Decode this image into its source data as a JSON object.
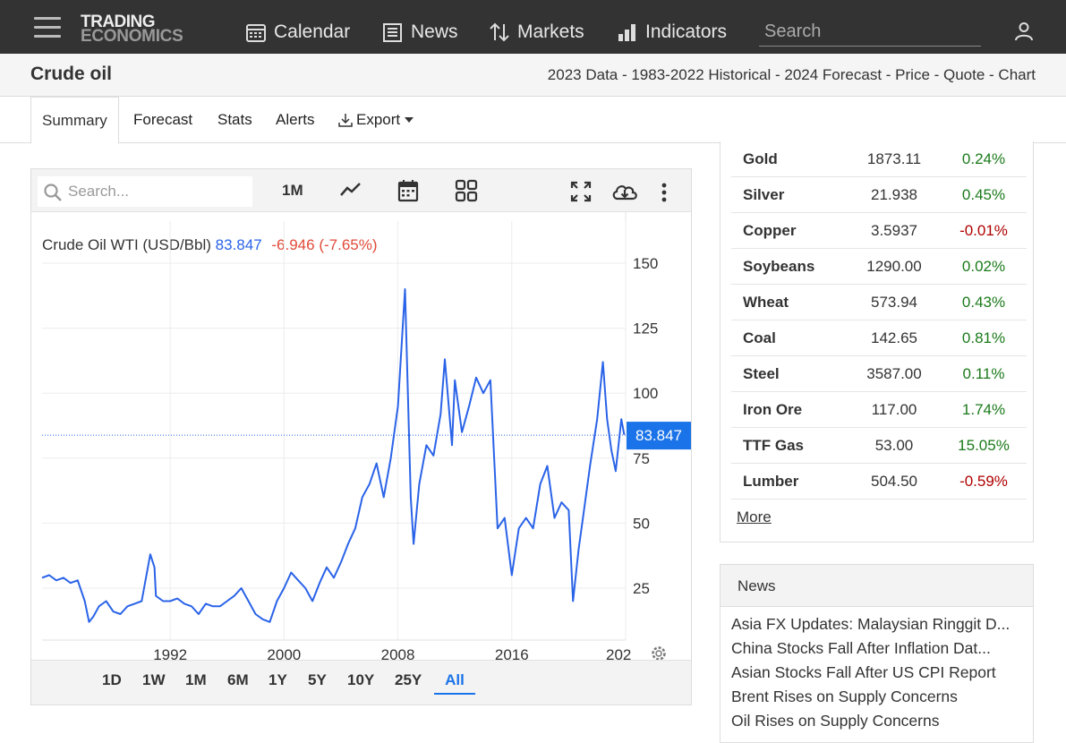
{
  "header": {
    "logo_line1": "TRADING",
    "logo_line2": "ECONOMICS",
    "nav": [
      {
        "label": "Calendar",
        "icon": "calendar-icon"
      },
      {
        "label": "News",
        "icon": "newspaper-icon"
      },
      {
        "label": "Markets",
        "icon": "sort-arrows-icon"
      },
      {
        "label": "Indicators",
        "icon": "bar-chart-icon"
      }
    ],
    "search_placeholder": "Search"
  },
  "subheader": {
    "title": "Crude oil",
    "links": "2023 Data - 1983-2022 Historical - 2024 Forecast - Price - Quote - Chart"
  },
  "tabs": [
    "Summary",
    "Forecast",
    "Stats",
    "Alerts",
    "Export"
  ],
  "chart_toolbar": {
    "search_placeholder": "Search...",
    "interval": "1M"
  },
  "chart_data": {
    "type": "line",
    "title": "Crude Oil WTI (USD/Bbl)",
    "last_value": "83.847",
    "change": "-6.946 (-7.65%)",
    "price_tag": "83.847",
    "x_ticks": [
      "1992",
      "2000",
      "2008",
      "2016",
      "202"
    ],
    "y_ticks": [
      "150",
      "125",
      "100",
      "75",
      "50",
      "25"
    ],
    "xlim": [
      1983,
      2024
    ],
    "ylim": [
      0,
      175
    ],
    "colors": {
      "line": "#2a63e8",
      "change": "#e04a3a",
      "tag": "#1a73e8"
    },
    "series": [
      {
        "points": [
          [
            1983,
            29
          ],
          [
            1983.5,
            30
          ],
          [
            1984,
            28
          ],
          [
            1984.5,
            29
          ],
          [
            1985,
            27
          ],
          [
            1985.5,
            28
          ],
          [
            1986,
            20
          ],
          [
            1986.3,
            12
          ],
          [
            1986.6,
            14
          ],
          [
            1987,
            18
          ],
          [
            1987.5,
            20
          ],
          [
            1988,
            16
          ],
          [
            1988.5,
            15
          ],
          [
            1989,
            18
          ],
          [
            1989.5,
            19
          ],
          [
            1990,
            20
          ],
          [
            1990.6,
            38
          ],
          [
            1990.9,
            33
          ],
          [
            1991,
            22
          ],
          [
            1991.5,
            20
          ],
          [
            1992,
            20
          ],
          [
            1992.5,
            21
          ],
          [
            1993,
            19
          ],
          [
            1993.5,
            18
          ],
          [
            1994,
            15
          ],
          [
            1994.5,
            19
          ],
          [
            1995,
            18
          ],
          [
            1995.5,
            18
          ],
          [
            1996,
            20
          ],
          [
            1996.5,
            22
          ],
          [
            1997,
            25
          ],
          [
            1997.5,
            20
          ],
          [
            1998,
            15
          ],
          [
            1998.5,
            13
          ],
          [
            1999,
            12
          ],
          [
            1999.5,
            20
          ],
          [
            2000,
            25
          ],
          [
            2000.5,
            31
          ],
          [
            2001,
            28
          ],
          [
            2001.5,
            25
          ],
          [
            2002,
            20
          ],
          [
            2002.5,
            27
          ],
          [
            2003,
            33
          ],
          [
            2003.5,
            29
          ],
          [
            2004,
            35
          ],
          [
            2004.5,
            42
          ],
          [
            2005,
            48
          ],
          [
            2005.5,
            60
          ],
          [
            2006,
            65
          ],
          [
            2006.5,
            73
          ],
          [
            2007,
            60
          ],
          [
            2007.5,
            75
          ],
          [
            2008,
            95
          ],
          [
            2008.5,
            140
          ],
          [
            2008.9,
            60
          ],
          [
            2009.1,
            42
          ],
          [
            2009.5,
            65
          ],
          [
            2010,
            80
          ],
          [
            2010.5,
            76
          ],
          [
            2011,
            92
          ],
          [
            2011.3,
            113
          ],
          [
            2011.8,
            80
          ],
          [
            2012,
            105
          ],
          [
            2012.5,
            85
          ],
          [
            2013,
            95
          ],
          [
            2013.5,
            106
          ],
          [
            2014,
            100
          ],
          [
            2014.5,
            105
          ],
          [
            2015,
            48
          ],
          [
            2015.5,
            52
          ],
          [
            2016,
            30
          ],
          [
            2016.5,
            48
          ],
          [
            2017,
            52
          ],
          [
            2017.5,
            48
          ],
          [
            2018,
            65
          ],
          [
            2018.5,
            72
          ],
          [
            2019,
            52
          ],
          [
            2019.5,
            58
          ],
          [
            2020,
            55
          ],
          [
            2020.3,
            20
          ],
          [
            2020.7,
            40
          ],
          [
            2021,
            52
          ],
          [
            2021.5,
            72
          ],
          [
            2022,
            90
          ],
          [
            2022.4,
            112
          ],
          [
            2022.7,
            90
          ],
          [
            2023,
            78
          ],
          [
            2023.3,
            70
          ],
          [
            2023.7,
            90
          ],
          [
            2023.9,
            84
          ]
        ]
      }
    ]
  },
  "range_buttons": [
    "1D",
    "1W",
    "1M",
    "6M",
    "1Y",
    "5Y",
    "10Y",
    "25Y",
    "All"
  ],
  "range_active": "All",
  "commodities": [
    {
      "name": "Gold",
      "price": "1873.11",
      "change": "0.24%",
      "dir": "pos"
    },
    {
      "name": "Silver",
      "price": "21.938",
      "change": "0.45%",
      "dir": "pos"
    },
    {
      "name": "Copper",
      "price": "3.5937",
      "change": "-0.01%",
      "dir": "neg"
    },
    {
      "name": "Soybeans",
      "price": "1290.00",
      "change": "0.02%",
      "dir": "pos"
    },
    {
      "name": "Wheat",
      "price": "573.94",
      "change": "0.43%",
      "dir": "pos"
    },
    {
      "name": "Coal",
      "price": "142.65",
      "change": "0.81%",
      "dir": "pos"
    },
    {
      "name": "Steel",
      "price": "3587.00",
      "change": "0.11%",
      "dir": "pos"
    },
    {
      "name": "Iron Ore",
      "price": "117.00",
      "change": "1.74%",
      "dir": "pos"
    },
    {
      "name": "TTF Gas",
      "price": "53.00",
      "change": "15.05%",
      "dir": "pos"
    },
    {
      "name": "Lumber",
      "price": "504.50",
      "change": "-0.59%",
      "dir": "neg"
    }
  ],
  "more_label": "More",
  "news": {
    "title": "News",
    "items": [
      "Asia FX Updates: Malaysian Ringgit D...",
      "China Stocks Fall After Inflation Dat...",
      "Asian Stocks Fall After US CPI Report",
      "Brent Rises on Supply Concerns",
      "Oil Rises on Supply Concerns"
    ]
  }
}
